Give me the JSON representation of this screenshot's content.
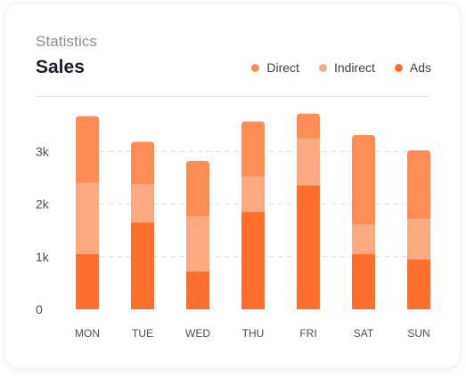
{
  "card": {
    "subtitle": "Statistics",
    "title": "Sales"
  },
  "legend": [
    {
      "label": "Direct",
      "color": "#fd8c55"
    },
    {
      "label": "Indirect",
      "color": "#fdaa83"
    },
    {
      "label": "Ads",
      "color": "#fd6f2c"
    }
  ],
  "chart_data": {
    "type": "bar",
    "stacked": true,
    "categories": [
      "MON",
      "TUE",
      "WED",
      "THU",
      "FRI",
      "SAT",
      "SUN"
    ],
    "series": [
      {
        "name": "Ads",
        "color": "#fd6f2c",
        "values": [
          1050,
          1650,
          720,
          1850,
          2360,
          1050,
          950
        ]
      },
      {
        "name": "Indirect",
        "color": "#fdaa83",
        "values": [
          1350,
          730,
          1050,
          670,
          890,
          560,
          770
        ]
      },
      {
        "name": "Direct",
        "color": "#fd8c55",
        "values": [
          1270,
          800,
          1050,
          1050,
          470,
          1700,
          1300
        ]
      }
    ],
    "yticks": [
      0,
      1000,
      2000,
      3000
    ],
    "yticklabels": [
      "0",
      "1k",
      "2k",
      "3k"
    ],
    "ylim": [
      0,
      3850
    ],
    "grid": true,
    "legend_position": "top-right"
  }
}
